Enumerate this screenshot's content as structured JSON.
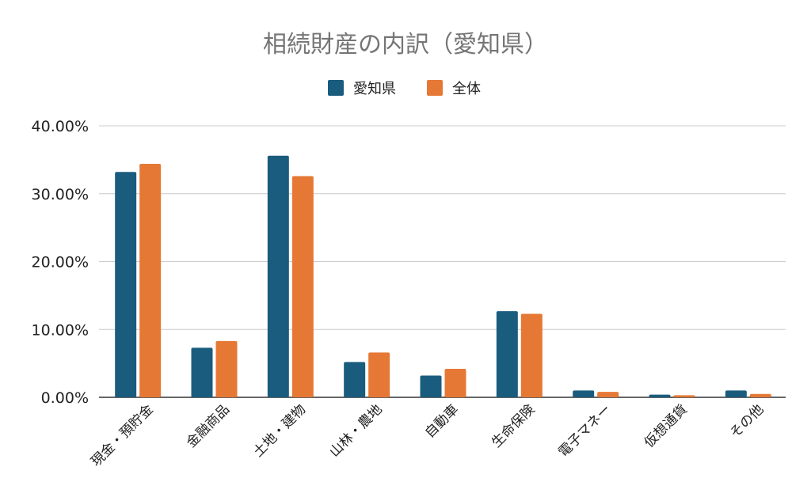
{
  "chart_data": {
    "type": "bar",
    "title": "相続財産の内訳（愛知県）",
    "xlabel": "",
    "ylabel": "",
    "categories": [
      "現金・預貯金",
      "金融商品",
      "土地・建物",
      "山林・農地",
      "自動車",
      "生命保険",
      "電子マネー",
      "仮想通貨",
      "その他"
    ],
    "series": [
      {
        "name": "愛知県",
        "color": "#1a5c7e",
        "values": [
          33.2,
          7.3,
          35.6,
          5.2,
          3.2,
          12.7,
          1.0,
          0.4,
          1.0
        ]
      },
      {
        "name": "全体",
        "color": "#e67835",
        "values": [
          34.4,
          8.3,
          32.6,
          6.6,
          4.2,
          12.3,
          0.8,
          0.3,
          0.5
        ]
      }
    ],
    "ylim": [
      0,
      40
    ],
    "yticks": [
      "0.00%",
      "10.00%",
      "20.00%",
      "30.00%",
      "40.00%"
    ],
    "grid": true,
    "legend_position": "top-center"
  }
}
